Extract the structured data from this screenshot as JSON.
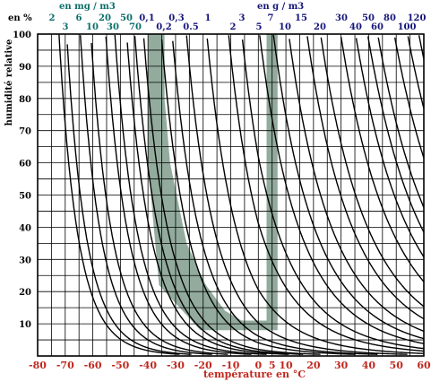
{
  "chart_data": {
    "type": "line",
    "subtype": "hygrometric-chart",
    "xlabel": "température en °C",
    "ylabel": "humidité relative",
    "y_unit_label": "en %",
    "xlim": [
      -80,
      60
    ],
    "ylim": [
      0,
      100
    ],
    "x_ticks": [
      -80,
      -70,
      -60,
      -50,
      -40,
      -30,
      -20,
      -10,
      0,
      5,
      10,
      20,
      30,
      40,
      50,
      60
    ],
    "y_ticks": [
      10,
      20,
      30,
      40,
      50,
      60,
      70,
      80,
      90,
      100
    ],
    "grid": true,
    "top_labels_mg": {
      "unit": "en mg / m3",
      "upper_row": [
        "2",
        "6",
        "20",
        "50"
      ],
      "lower_row": [
        "3",
        "10",
        "30",
        "70"
      ]
    },
    "top_labels_g": {
      "unit": "en  g / m3",
      "upper_row": [
        "0,1",
        "0,3",
        "1",
        "3",
        "7",
        "15",
        "30",
        "50",
        "80",
        "120"
      ],
      "lower_row": [
        "0,2",
        "0.5",
        "2",
        "5",
        "10",
        "20",
        "40",
        "60",
        "100"
      ]
    },
    "isolines_absolute_humidity": {
      "units": "g/m3",
      "values": [
        0.002,
        0.003,
        0.006,
        0.01,
        0.02,
        0.03,
        0.05,
        0.07,
        0.1,
        0.2,
        0.3,
        0.5,
        1,
        2,
        3,
        5,
        7,
        10,
        15,
        20,
        30,
        40,
        50,
        60,
        80,
        100,
        120
      ]
    },
    "highlighted_region": {
      "color": "#7f9c8c",
      "outline": [
        [
          -40,
          100
        ],
        [
          -34,
          100
        ],
        [
          -34,
          80
        ],
        [
          -32,
          60
        ],
        [
          -26,
          35
        ],
        [
          -19,
          22
        ],
        [
          -12,
          14
        ],
        [
          -6,
          11
        ],
        [
          3,
          11
        ],
        [
          3,
          100
        ],
        [
          7,
          100
        ],
        [
          7,
          8
        ],
        [
          -21,
          8
        ],
        [
          -36,
          22
        ],
        [
          -40,
          60
        ],
        [
          -40,
          100
        ]
      ]
    }
  }
}
